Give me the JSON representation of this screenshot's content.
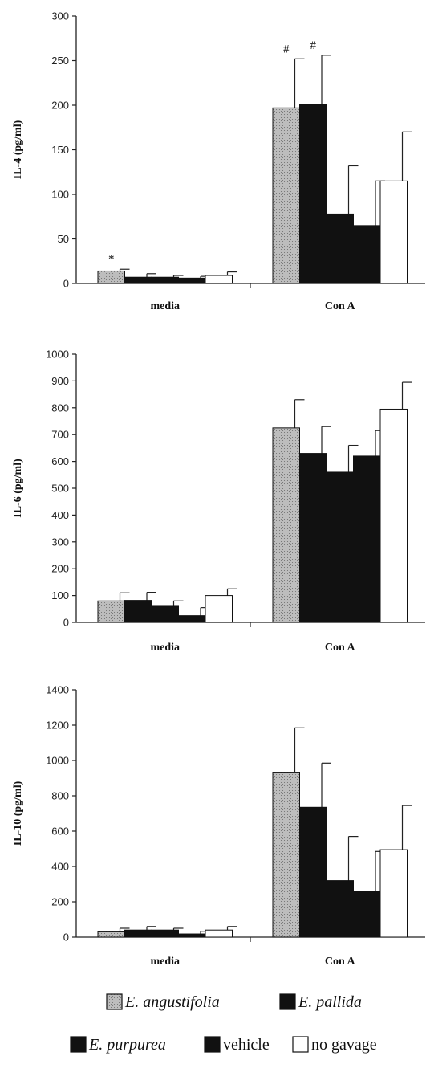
{
  "colors": {
    "E. angustifolia": "#bdbdbd",
    "E. pallida": "#111111",
    "E. purpurea": "#111111",
    "vehicle": "#111111",
    "no gavage": "#ffffff"
  },
  "chart_data": [
    {
      "type": "bar",
      "ylabel": "IL-4 (pg/ml)",
      "ylim": [
        0,
        300
      ],
      "yticks": [
        0,
        50,
        100,
        150,
        200,
        250,
        300
      ],
      "categories": [
        "media",
        "Con A"
      ],
      "series": [
        {
          "name": "E. angustifolia",
          "values": [
            14,
            197
          ],
          "errors": [
            2,
            55
          ]
        },
        {
          "name": "E. pallida",
          "values": [
            7,
            201
          ],
          "errors": [
            4,
            55
          ]
        },
        {
          "name": "E. purpurea",
          "values": [
            7,
            78
          ],
          "errors": [
            2,
            54
          ]
        },
        {
          "name": "vehicle",
          "values": [
            6,
            65
          ],
          "errors": [
            2,
            50
          ]
        },
        {
          "name": "no gavage",
          "values": [
            9,
            115
          ],
          "errors": [
            4,
            55
          ]
        }
      ],
      "annotations": [
        {
          "text": "*",
          "category": 0,
          "series": 0
        },
        {
          "text": "#",
          "category": 1,
          "series": 0
        },
        {
          "text": "#",
          "category": 1,
          "series": 1
        }
      ]
    },
    {
      "type": "bar",
      "ylabel": "IL-6 (pg/ml)",
      "ylim": [
        0,
        1000
      ],
      "yticks": [
        0,
        100,
        200,
        300,
        400,
        500,
        600,
        700,
        800,
        900,
        1000
      ],
      "categories": [
        "media",
        "Con A"
      ],
      "series": [
        {
          "name": "E. angustifolia",
          "values": [
            80,
            725
          ],
          "errors": [
            30,
            105
          ]
        },
        {
          "name": "E. pallida",
          "values": [
            82,
            630
          ],
          "errors": [
            30,
            100
          ]
        },
        {
          "name": "E. purpurea",
          "values": [
            60,
            560
          ],
          "errors": [
            20,
            100
          ]
        },
        {
          "name": "vehicle",
          "values": [
            25,
            620
          ],
          "errors": [
            30,
            95
          ]
        },
        {
          "name": "no gavage",
          "values": [
            100,
            795
          ],
          "errors": [
            25,
            100
          ]
        }
      ],
      "annotations": []
    },
    {
      "type": "bar",
      "ylabel": "IL-10 (pg/ml)",
      "ylim": [
        0,
        1400
      ],
      "yticks": [
        0,
        200,
        400,
        600,
        800,
        1000,
        1200,
        1400
      ],
      "categories": [
        "media",
        "Con A"
      ],
      "series": [
        {
          "name": "E. angustifolia",
          "values": [
            30,
            930
          ],
          "errors": [
            20,
            255
          ]
        },
        {
          "name": "E. pallida",
          "values": [
            40,
            735
          ],
          "errors": [
            20,
            250
          ]
        },
        {
          "name": "E. purpurea",
          "values": [
            40,
            320
          ],
          "errors": [
            10,
            250
          ]
        },
        {
          "name": "vehicle",
          "values": [
            18,
            260
          ],
          "errors": [
            15,
            225
          ]
        },
        {
          "name": "no gavage",
          "values": [
            40,
            495
          ],
          "errors": [
            20,
            250
          ]
        }
      ],
      "annotations": []
    }
  ],
  "legend": [
    {
      "label": "E. angustifolia",
      "italic": true
    },
    {
      "label": "E. pallida",
      "italic": true
    },
    {
      "label": "E. purpurea",
      "italic": true
    },
    {
      "label": "vehicle",
      "italic": false
    },
    {
      "label": "no gavage",
      "italic": false
    }
  ]
}
